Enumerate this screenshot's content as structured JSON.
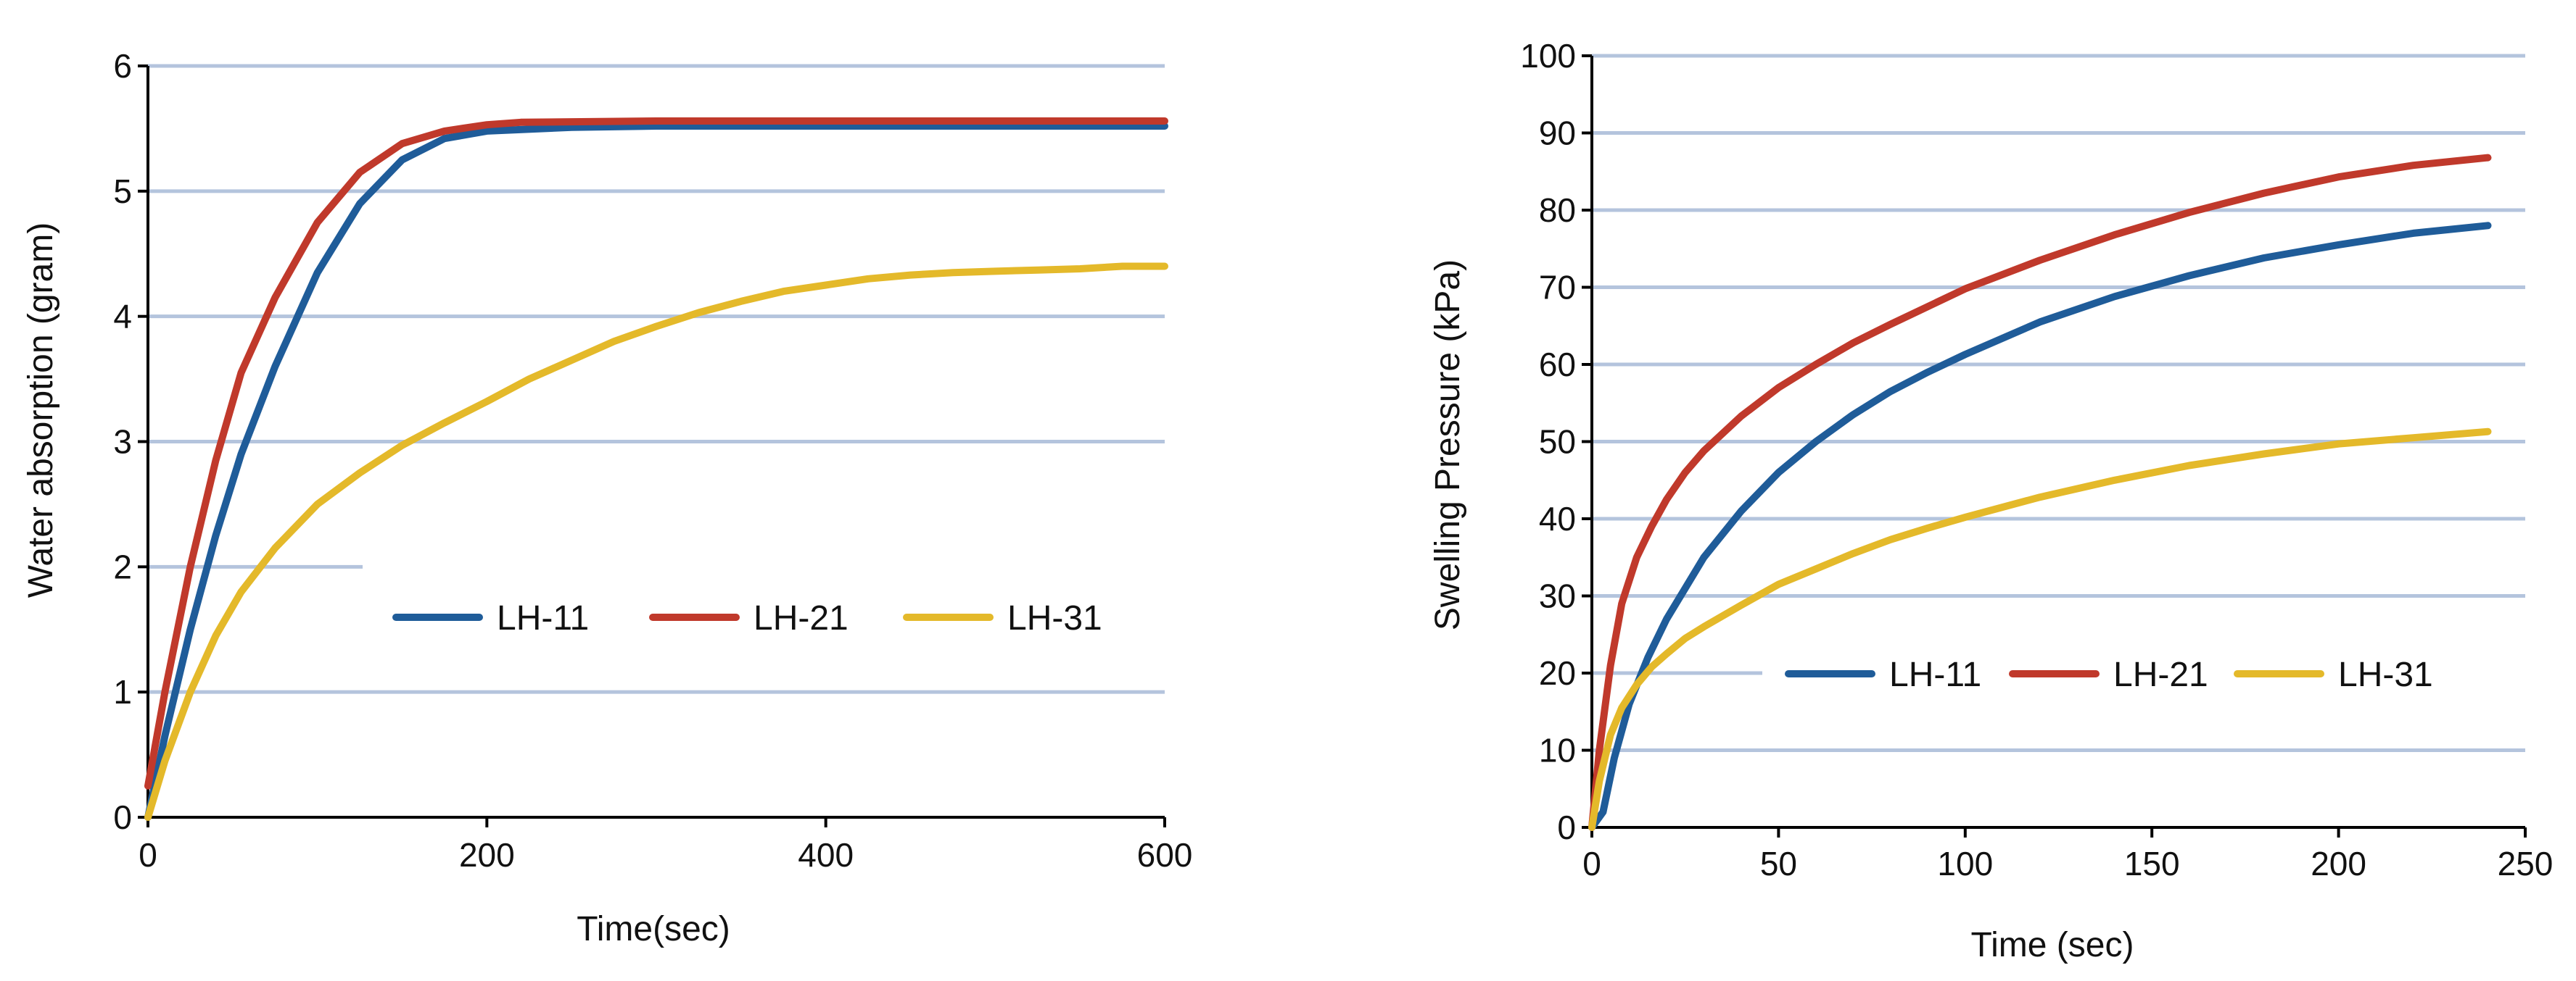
{
  "chart_data": [
    {
      "id": "water-absorption",
      "type": "line",
      "title": "",
      "xlabel": "Time(sec)",
      "ylabel": "Water absorption  (gram)",
      "xlim": [
        0,
        600
      ],
      "ylim": [
        0,
        6
      ],
      "xticks": [
        0,
        200,
        400,
        600
      ],
      "yticks": [
        0,
        1,
        2,
        3,
        4,
        5,
        6
      ],
      "grid": true,
      "legend_position": "lower-right",
      "series": [
        {
          "name": "LH-11",
          "color": "#1f5c99",
          "points": [
            [
              0,
              0
            ],
            [
              10,
              0.65
            ],
            [
              25,
              1.5
            ],
            [
              40,
              2.25
            ],
            [
              55,
              2.9
            ],
            [
              75,
              3.6
            ],
            [
              100,
              4.35
            ],
            [
              125,
              4.9
            ],
            [
              150,
              5.25
            ],
            [
              175,
              5.42
            ],
            [
              200,
              5.48
            ],
            [
              250,
              5.51
            ],
            [
              300,
              5.52
            ],
            [
              400,
              5.52
            ],
            [
              500,
              5.52
            ],
            [
              600,
              5.52
            ]
          ]
        },
        {
          "name": "LH-21",
          "color": "#c0392b",
          "points": [
            [
              0,
              0.25
            ],
            [
              10,
              1.0
            ],
            [
              25,
              2.0
            ],
            [
              40,
              2.85
            ],
            [
              55,
              3.55
            ],
            [
              75,
              4.15
            ],
            [
              100,
              4.75
            ],
            [
              125,
              5.15
            ],
            [
              150,
              5.38
            ],
            [
              175,
              5.48
            ],
            [
              200,
              5.53
            ],
            [
              220,
              5.55
            ],
            [
              300,
              5.56
            ],
            [
              400,
              5.56
            ],
            [
              500,
              5.56
            ],
            [
              600,
              5.56
            ]
          ]
        },
        {
          "name": "LH-31",
          "color": "#e4b92a",
          "points": [
            [
              0,
              0
            ],
            [
              10,
              0.45
            ],
            [
              25,
              1.0
            ],
            [
              40,
              1.45
            ],
            [
              55,
              1.8
            ],
            [
              75,
              2.15
            ],
            [
              100,
              2.5
            ],
            [
              125,
              2.75
            ],
            [
              150,
              2.97
            ],
            [
              175,
              3.15
            ],
            [
              200,
              3.32
            ],
            [
              225,
              3.5
            ],
            [
              250,
              3.65
            ],
            [
              275,
              3.8
            ],
            [
              300,
              3.92
            ],
            [
              325,
              4.03
            ],
            [
              350,
              4.12
            ],
            [
              375,
              4.2
            ],
            [
              400,
              4.25
            ],
            [
              425,
              4.3
            ],
            [
              450,
              4.33
            ],
            [
              475,
              4.35
            ],
            [
              500,
              4.36
            ],
            [
              525,
              4.37
            ],
            [
              550,
              4.38
            ],
            [
              575,
              4.4
            ],
            [
              600,
              4.4
            ]
          ]
        }
      ]
    },
    {
      "id": "swelling-pressure",
      "type": "line",
      "title": "",
      "xlabel": "Time (sec)",
      "ylabel": "Swelling  Pressure  (kPa)",
      "xlim": [
        0,
        250
      ],
      "ylim": [
        0,
        100
      ],
      "xticks": [
        0,
        50,
        100,
        150,
        200,
        250
      ],
      "yticks": [
        0,
        10,
        20,
        30,
        40,
        50,
        60,
        70,
        80,
        90,
        100
      ],
      "grid": true,
      "legend_position": "lower-right",
      "series": [
        {
          "name": "LH-11",
          "color": "#1f5c99",
          "points": [
            [
              0,
              0
            ],
            [
              3,
              2
            ],
            [
              6,
              9
            ],
            [
              10,
              16
            ],
            [
              15,
              22
            ],
            [
              20,
              27
            ],
            [
              25,
              31
            ],
            [
              30,
              35
            ],
            [
              40,
              41
            ],
            [
              50,
              46
            ],
            [
              60,
              50
            ],
            [
              70,
              53.5
            ],
            [
              80,
              56.5
            ],
            [
              90,
              59
            ],
            [
              100,
              61.3
            ],
            [
              120,
              65.5
            ],
            [
              140,
              68.8
            ],
            [
              160,
              71.5
            ],
            [
              180,
              73.8
            ],
            [
              200,
              75.5
            ],
            [
              220,
              77
            ],
            [
              240,
              78
            ]
          ]
        },
        {
          "name": "LH-21",
          "color": "#c0392b",
          "points": [
            [
              0,
              0
            ],
            [
              2,
              10
            ],
            [
              5,
              21
            ],
            [
              8,
              29
            ],
            [
              12,
              35
            ],
            [
              16,
              39
            ],
            [
              20,
              42.5
            ],
            [
              25,
              46
            ],
            [
              30,
              48.8
            ],
            [
              40,
              53.3
            ],
            [
              50,
              57
            ],
            [
              60,
              60
            ],
            [
              70,
              62.8
            ],
            [
              80,
              65.2
            ],
            [
              90,
              67.5
            ],
            [
              100,
              69.8
            ],
            [
              120,
              73.5
            ],
            [
              140,
              76.8
            ],
            [
              160,
              79.7
            ],
            [
              180,
              82.2
            ],
            [
              200,
              84.3
            ],
            [
              220,
              85.8
            ],
            [
              240,
              86.8
            ]
          ]
        },
        {
          "name": "LH-31",
          "color": "#e4b92a",
          "points": [
            [
              0,
              0
            ],
            [
              2,
              6
            ],
            [
              5,
              12
            ],
            [
              8,
              15.5
            ],
            [
              12,
              18.5
            ],
            [
              16,
              20.8
            ],
            [
              20,
              22.5
            ],
            [
              25,
              24.5
            ],
            [
              30,
              26
            ],
            [
              40,
              28.8
            ],
            [
              50,
              31.5
            ],
            [
              60,
              33.5
            ],
            [
              70,
              35.5
            ],
            [
              80,
              37.3
            ],
            [
              90,
              38.8
            ],
            [
              100,
              40.2
            ],
            [
              120,
              42.8
            ],
            [
              140,
              45
            ],
            [
              160,
              46.9
            ],
            [
              180,
              48.4
            ],
            [
              200,
              49.7
            ],
            [
              220,
              50.5
            ],
            [
              240,
              51.3
            ]
          ]
        }
      ]
    }
  ]
}
